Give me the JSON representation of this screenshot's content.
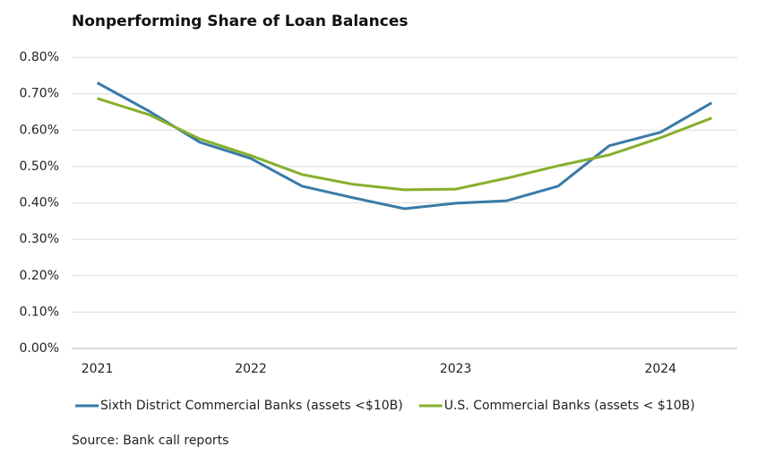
{
  "chart_data": {
    "type": "line",
    "title": "Nonperforming Share of Loan Balances",
    "categories": [
      "2021",
      null,
      null,
      "2022",
      null,
      null,
      null,
      "2023",
      null,
      null,
      null,
      "2024",
      null
    ],
    "series": [
      {
        "name": "Sixth District Commercial Banks (assets <$10B)",
        "color": "#3a7aa8",
        "values": [
          0.73,
          0.653,
          0.567,
          0.522,
          0.446,
          0.414,
          0.384,
          0.399,
          0.406,
          0.446,
          0.557,
          0.594,
          0.675
        ]
      },
      {
        "name": "U.S. Commercial Banks (assets < $10B)",
        "color": "#86b02c",
        "values": [
          0.687,
          0.643,
          0.576,
          0.53,
          0.478,
          0.451,
          0.436,
          0.438,
          0.468,
          0.502,
          0.532,
          0.579,
          0.633
        ]
      }
    ],
    "ylim": [
      0,
      0.8
    ],
    "yticks": [
      {
        "value": 0,
        "label": "0.00%"
      },
      {
        "value": 0.1,
        "label": "0.10%"
      },
      {
        "value": 0.2,
        "label": "0.20%"
      },
      {
        "value": 0.3,
        "label": "0.30%"
      },
      {
        "value": 0.4,
        "label": "0.40%"
      },
      {
        "value": 0.5,
        "label": "0.50%"
      },
      {
        "value": 0.6,
        "label": "0.60%"
      },
      {
        "value": 0.7,
        "label": "0.70%"
      },
      {
        "value": 0.8,
        "label": "0.80%"
      }
    ],
    "grid": true,
    "legend": "bottom",
    "source": "Source: Bank call reports"
  }
}
